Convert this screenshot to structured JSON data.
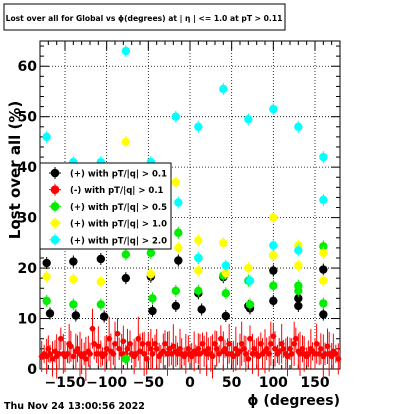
{
  "chart_data": {
    "type": "scatter",
    "title": "Lost over all for Global vs ϕ(degrees) at | η | <= 1.0 at pT > 0.11",
    "xlabel": "ϕ (degrees)",
    "ylabel": "Lost over all (%)",
    "xlim": [
      -180,
      180
    ],
    "ylim": [
      0,
      65
    ],
    "x_ticks": [
      -150,
      -100,
      -50,
      0,
      50,
      100,
      150
    ],
    "x_tick_labels": [
      "−150",
      "−100",
      "−50",
      "0",
      "50",
      "100",
      "150"
    ],
    "y_ticks": [
      0,
      10,
      20,
      30,
      40,
      50,
      60
    ],
    "y_tick_labels": [
      "0",
      "10",
      "20",
      "30",
      "40",
      "50",
      "60"
    ],
    "grid": true,
    "legend_position": "middle-left",
    "timestamp": "Thu Nov 24 13:00:56 2022",
    "series": [
      {
        "name": "(+) with pT/|q| > 0.1",
        "color": "#000000",
        "points": [
          [
            -172,
            21.0
          ],
          [
            -168,
            11.0
          ],
          [
            -140,
            21.3
          ],
          [
            -137,
            10.6
          ],
          [
            -107,
            21.8
          ],
          [
            -103,
            10.4
          ],
          [
            -77,
            18.0
          ],
          [
            -47,
            18.3
          ],
          [
            -45,
            11.5
          ],
          [
            -17,
            12.5
          ],
          [
            -14,
            21.5
          ],
          [
            10,
            15.0
          ],
          [
            14,
            11.8
          ],
          [
            40,
            18.2
          ],
          [
            43,
            10.5
          ],
          [
            70,
            12.5
          ],
          [
            72,
            12.0
          ],
          [
            100,
            19.5
          ],
          [
            100,
            13.5
          ],
          [
            130,
            14.0
          ],
          [
            130,
            12.5
          ],
          [
            160,
            19.7
          ],
          [
            160,
            10.8
          ]
        ]
      },
      {
        "name": "(-) with pT/|q| > 0.1",
        "color": "#ff0000",
        "points": [
          [
            -178,
            2.5
          ],
          [
            -175,
            3.0
          ],
          [
            -172,
            2.5
          ],
          [
            -170,
            4.0
          ],
          [
            -168,
            3.0
          ],
          [
            -165,
            2.0
          ],
          [
            -162,
            3.5
          ],
          [
            -160,
            2.5
          ],
          [
            -157,
            3.0
          ],
          [
            -155,
            6.0
          ],
          [
            -152,
            3.0
          ],
          [
            -150,
            2.5
          ],
          [
            -147,
            3.0
          ],
          [
            -145,
            5.0
          ],
          [
            -143,
            4.5
          ],
          [
            -140,
            2.5
          ],
          [
            -137,
            3.5
          ],
          [
            -135,
            4.0
          ],
          [
            -132,
            3.0
          ],
          [
            -130,
            2.5
          ],
          [
            -127,
            3.0
          ],
          [
            -125,
            2.0
          ],
          [
            -122,
            3.5
          ],
          [
            -120,
            3.0
          ],
          [
            -117,
            8.0
          ],
          [
            -115,
            5.0
          ],
          [
            -112,
            3.0
          ],
          [
            -110,
            4.5
          ],
          [
            -107,
            3.0
          ],
          [
            -105,
            2.5
          ],
          [
            -102,
            3.0
          ],
          [
            -100,
            4.0
          ],
          [
            -97,
            6.0
          ],
          [
            -95,
            3.5
          ],
          [
            -92,
            3.0
          ],
          [
            -90,
            5.0
          ],
          [
            -87,
            7.0
          ],
          [
            -85,
            4.0
          ],
          [
            -82,
            3.0
          ],
          [
            -80,
            5.5
          ],
          [
            -77,
            3.0
          ],
          [
            -75,
            4.0
          ],
          [
            -72,
            5.0
          ],
          [
            -70,
            3.0
          ],
          [
            -67,
            2.5
          ],
          [
            -65,
            3.0
          ],
          [
            -62,
            6.0
          ],
          [
            -60,
            3.5
          ],
          [
            -57,
            5.0
          ],
          [
            -55,
            3.0
          ],
          [
            -52,
            2.0
          ],
          [
            -50,
            5.0
          ],
          [
            -47,
            4.0
          ],
          [
            -45,
            3.0
          ],
          [
            -42,
            5.0
          ],
          [
            -40,
            4.0
          ],
          [
            -37,
            2.5
          ],
          [
            -35,
            3.0
          ],
          [
            -32,
            3.5
          ],
          [
            -30,
            5.0
          ],
          [
            -27,
            3.0
          ],
          [
            -25,
            4.0
          ],
          [
            -22,
            3.0
          ],
          [
            -20,
            4.5
          ],
          [
            -17,
            3.5
          ],
          [
            -15,
            3.0
          ],
          [
            -12,
            4.0
          ],
          [
            -10,
            3.0
          ],
          [
            -7,
            2.5
          ],
          [
            -5,
            3.0
          ],
          [
            -2,
            4.0
          ],
          [
            0,
            3.0
          ],
          [
            2,
            2.5
          ],
          [
            5,
            3.5
          ],
          [
            7,
            3.0
          ],
          [
            10,
            4.0
          ],
          [
            12,
            3.0
          ],
          [
            15,
            5.0
          ],
          [
            17,
            3.5
          ],
          [
            20,
            3.0
          ],
          [
            22,
            4.0
          ],
          [
            25,
            3.0
          ],
          [
            27,
            2.5
          ],
          [
            30,
            5.0
          ],
          [
            32,
            4.0
          ],
          [
            35,
            3.0
          ],
          [
            37,
            6.0
          ],
          [
            40,
            3.5
          ],
          [
            42,
            4.0
          ],
          [
            45,
            3.0
          ],
          [
            47,
            5.0
          ],
          [
            50,
            3.0
          ],
          [
            52,
            2.5
          ],
          [
            55,
            4.0
          ],
          [
            57,
            3.0
          ],
          [
            60,
            3.5
          ],
          [
            62,
            5.0
          ],
          [
            65,
            4.0
          ],
          [
            67,
            3.0
          ],
          [
            70,
            2.0
          ],
          [
            72,
            6.0
          ],
          [
            75,
            3.0
          ],
          [
            77,
            4.0
          ],
          [
            80,
            3.0
          ],
          [
            82,
            2.5
          ],
          [
            85,
            5.0
          ],
          [
            87,
            3.0
          ],
          [
            90,
            3.5
          ],
          [
            92,
            4.0
          ],
          [
            95,
            3.0
          ],
          [
            97,
            5.0
          ],
          [
            100,
            6.5
          ],
          [
            102,
            4.0
          ],
          [
            105,
            3.0
          ],
          [
            107,
            3.5
          ],
          [
            110,
            5.0
          ],
          [
            112,
            4.0
          ],
          [
            115,
            3.0
          ],
          [
            117,
            2.5
          ],
          [
            120,
            4.0
          ],
          [
            122,
            3.0
          ],
          [
            125,
            5.0
          ],
          [
            127,
            6.0
          ],
          [
            130,
            3.5
          ],
          [
            132,
            3.0
          ],
          [
            135,
            4.0
          ],
          [
            137,
            3.0
          ],
          [
            140,
            2.5
          ],
          [
            142,
            3.0
          ],
          [
            145,
            4.0
          ],
          [
            147,
            3.5
          ],
          [
            150,
            3.0
          ],
          [
            152,
            5.0
          ],
          [
            155,
            3.0
          ],
          [
            157,
            4.0
          ],
          [
            160,
            2.5
          ],
          [
            162,
            3.0
          ],
          [
            165,
            4.5
          ],
          [
            167,
            3.0
          ],
          [
            170,
            2.5
          ],
          [
            172,
            3.5
          ],
          [
            175,
            3.0
          ],
          [
            178,
            2.0
          ]
        ]
      },
      {
        "name": "(+) with pT/|q| > 0.5",
        "color": "#00ee00",
        "points": [
          [
            -172,
            13.5
          ],
          [
            -140,
            12.8
          ],
          [
            -107,
            12.8
          ],
          [
            -77,
            2.0
          ],
          [
            -77,
            22.7
          ],
          [
            -47,
            23.0
          ],
          [
            -45,
            14.0
          ],
          [
            -17,
            15.5
          ],
          [
            -14,
            27.0
          ],
          [
            10,
            15.5
          ],
          [
            10,
            22.0
          ],
          [
            40,
            18.5
          ],
          [
            43,
            15.0
          ],
          [
            70,
            17.5
          ],
          [
            72,
            12.8
          ],
          [
            100,
            22.5
          ],
          [
            100,
            16.5
          ],
          [
            130,
            16.5
          ],
          [
            130,
            15.5
          ],
          [
            160,
            24.3
          ],
          [
            160,
            13.0
          ]
        ]
      },
      {
        "name": "(+) with pT/|q| > 1.0",
        "color": "#ffff00",
        "points": [
          [
            -172,
            18.3
          ],
          [
            -140,
            17.8
          ],
          [
            -107,
            17.3
          ],
          [
            -77,
            45.0
          ],
          [
            -47,
            18.8
          ],
          [
            -17,
            37.0
          ],
          [
            -14,
            24.0
          ],
          [
            10,
            25.5
          ],
          [
            10,
            19.5
          ],
          [
            40,
            25.0
          ],
          [
            43,
            19.0
          ],
          [
            70,
            20.0
          ],
          [
            100,
            30.0
          ],
          [
            100,
            22.5
          ],
          [
            130,
            24.5
          ],
          [
            130,
            20.5
          ],
          [
            160,
            23.0
          ],
          [
            160,
            17.5
          ]
        ]
      },
      {
        "name": "(+) with pT/|q| > 2.0",
        "color": "#00ffff",
        "points": [
          [
            -172,
            46.0
          ],
          [
            -140,
            41.0
          ],
          [
            -107,
            41.0
          ],
          [
            -77,
            63.0
          ],
          [
            -47,
            41.0
          ],
          [
            -17,
            50.0
          ],
          [
            -14,
            33.0
          ],
          [
            10,
            48.0
          ],
          [
            10,
            22.0
          ],
          [
            40,
            55.5
          ],
          [
            43,
            20.5
          ],
          [
            70,
            49.5
          ],
          [
            72,
            17.5
          ],
          [
            100,
            51.5
          ],
          [
            100,
            24.5
          ],
          [
            130,
            48.0
          ],
          [
            130,
            23.5
          ],
          [
            160,
            42.0
          ],
          [
            160,
            33.5
          ]
        ]
      }
    ]
  }
}
